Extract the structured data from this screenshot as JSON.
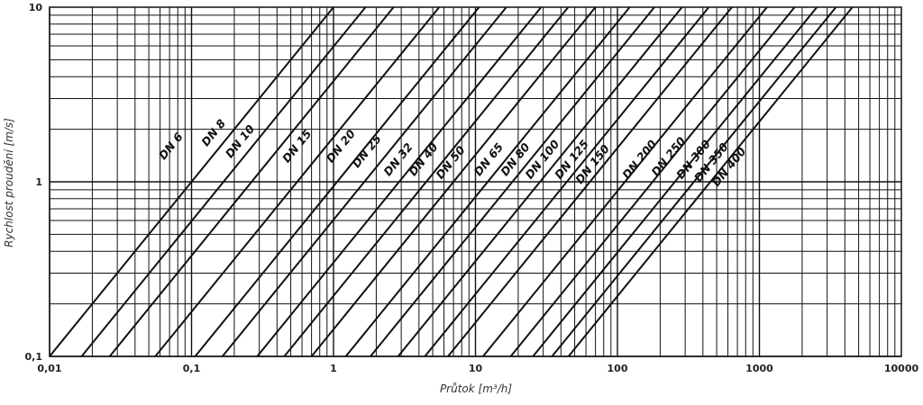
{
  "chart_data": {
    "type": "line",
    "xscale": "log",
    "yscale": "log",
    "xlim": [
      0.01,
      10000
    ],
    "ylim": [
      0.1,
      10
    ],
    "xlabel": "Průtok [m³/h]",
    "ylabel": "Rychlost proudění [m/s]",
    "x_ticks": [
      {
        "value": 0.01,
        "label": "0,01"
      },
      {
        "value": 0.1,
        "label": "0,1"
      },
      {
        "value": 1,
        "label": "1"
      },
      {
        "value": 10,
        "label": "10"
      },
      {
        "value": 100,
        "label": "100"
      },
      {
        "value": 1000,
        "label": "1000"
      },
      {
        "value": 10000,
        "label": "10000"
      }
    ],
    "y_ticks": [
      {
        "value": 0.1,
        "label": "0,1"
      },
      {
        "value": 1,
        "label": "1"
      },
      {
        "value": 10,
        "label": "10"
      }
    ],
    "grid": true,
    "line_color": "#111111",
    "series": [
      {
        "name": "DN 6",
        "x": [
          0.01,
          1.0
        ],
        "y": [
          0.1,
          10
        ]
      },
      {
        "name": "DN 8",
        "x": [
          0.0168,
          1.68
        ],
        "y": [
          0.1,
          10
        ]
      },
      {
        "name": "DN 10",
        "x": [
          0.0265,
          2.65
        ],
        "y": [
          0.1,
          10
        ]
      },
      {
        "name": "DN 15",
        "x": [
          0.0555,
          5.55
        ],
        "y": [
          0.1,
          10
        ]
      },
      {
        "name": "DN 20",
        "x": [
          0.106,
          10.6
        ],
        "y": [
          0.1,
          10
        ]
      },
      {
        "name": "DN 25",
        "x": [
          0.165,
          16.5
        ],
        "y": [
          0.1,
          10
        ]
      },
      {
        "name": "DN 32",
        "x": [
          0.29,
          29
        ],
        "y": [
          0.1,
          10
        ]
      },
      {
        "name": "DN 40",
        "x": [
          0.45,
          45
        ],
        "y": [
          0.1,
          10
        ]
      },
      {
        "name": "DN 50",
        "x": [
          0.7,
          70
        ],
        "y": [
          0.1,
          10
        ]
      },
      {
        "name": "DN 65",
        "x": [
          1.22,
          122
        ],
        "y": [
          0.1,
          10
        ]
      },
      {
        "name": "DN 80",
        "x": [
          1.82,
          182
        ],
        "y": [
          0.1,
          10
        ]
      },
      {
        "name": "DN 100",
        "x": [
          2.85,
          285
        ],
        "y": [
          0.1,
          10
        ]
      },
      {
        "name": "DN 125",
        "x": [
          4.4,
          440
        ],
        "y": [
          0.1,
          10
        ]
      },
      {
        "name": "DN 150",
        "x": [
          6.4,
          640
        ],
        "y": [
          0.1,
          10
        ]
      },
      {
        "name": "DN 200",
        "x": [
          11.3,
          1130
        ],
        "y": [
          0.1,
          10
        ]
      },
      {
        "name": "DN 250",
        "x": [
          17.7,
          1770
        ],
        "y": [
          0.1,
          10
        ]
      },
      {
        "name": "DN 300",
        "x": [
          25.4,
          2540
        ],
        "y": [
          0.1,
          10
        ]
      },
      {
        "name": "DN 350",
        "x": [
          34.6,
          3460
        ],
        "y": [
          0.1,
          10
        ]
      },
      {
        "name": "DN 400",
        "x": [
          45.2,
          4520
        ],
        "y": [
          0.1,
          10
        ]
      }
    ],
    "annotations": [
      {
        "text": "DN 6",
        "x": 0.075,
        "y": 1.55
      },
      {
        "text": "DN 8",
        "x": 0.15,
        "y": 1.85
      },
      {
        "text": "DN 10",
        "x": 0.23,
        "y": 1.65
      },
      {
        "text": "DN 15",
        "x": 0.58,
        "y": 1.55
      },
      {
        "text": "DN 20",
        "x": 1.18,
        "y": 1.55
      },
      {
        "text": "DN 25",
        "x": 1.8,
        "y": 1.45
      },
      {
        "text": "DN 32",
        "x": 3.0,
        "y": 1.3
      },
      {
        "text": "DN 40",
        "x": 4.5,
        "y": 1.3
      },
      {
        "text": "DN 50",
        "x": 7.0,
        "y": 1.25
      },
      {
        "text": "DN 65",
        "x": 13,
        "y": 1.3
      },
      {
        "text": "DN 80",
        "x": 20,
        "y": 1.3
      },
      {
        "text": "DN 100",
        "x": 31,
        "y": 1.3
      },
      {
        "text": "DN 125",
        "x": 50,
        "y": 1.3
      },
      {
        "text": "DN 150",
        "x": 70,
        "y": 1.22
      },
      {
        "text": "DN 200",
        "x": 150,
        "y": 1.3
      },
      {
        "text": "DN 250",
        "x": 240,
        "y": 1.35
      },
      {
        "text": "DN 300",
        "x": 360,
        "y": 1.3
      },
      {
        "text": "DN 350",
        "x": 480,
        "y": 1.25
      },
      {
        "text": "DN 400",
        "x": 640,
        "y": 1.18
      }
    ]
  }
}
